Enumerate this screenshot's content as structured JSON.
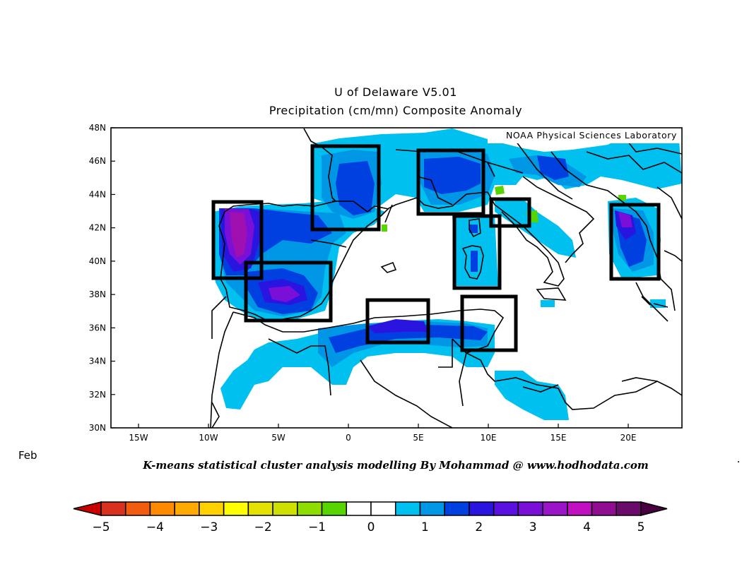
{
  "title_line1": "U of Delaware V5.01",
  "title_line2": "Precipitation (cm/mn) Composite Anomaly",
  "watermark": "NOAA Physical Sciences Laboratory",
  "month": "Feb",
  "credit": "K-means statistical cluster analysis modelling By Mohammad @ www.hodhodata.com",
  "lat_labels": [
    "48N",
    "46N",
    "44N",
    "42N",
    "40N",
    "38N",
    "36N",
    "34N",
    "32N",
    "30N"
  ],
  "lon_labels": [
    "15W",
    "10W",
    "5W",
    "0",
    "5E",
    "10E",
    "15E",
    "20E"
  ],
  "colorbar": {
    "labels": [
      "-5",
      "-4",
      "-3",
      "-2",
      "-1",
      "0",
      "1",
      "2",
      "3",
      "4",
      "5"
    ],
    "colors": [
      "#d7301f",
      "#f25c0f",
      "#ff8a00",
      "#ffaa00",
      "#ffd200",
      "#ffff00",
      "#e5e100",
      "#cde000",
      "#8fdc00",
      "#58d400",
      "#ffffff",
      "#ffffff",
      "#00c0f0",
      "#0096e6",
      "#0040e0",
      "#2a14e0",
      "#5a10e0",
      "#7a10d8",
      "#9a14c8",
      "#c010c0",
      "#900c90",
      "#6a0a6a"
    ],
    "end_low": "#c80000",
    "end_high": "#4a0040"
  },
  "colors": {
    "light_blue": "#00c0f0",
    "medium_blue": "#0096e6",
    "blue": "#0040e0",
    "indigo": "#2a14e0",
    "purple": "#7a10d8",
    "magenta": "#a010b0",
    "green": "#58d400"
  }
}
